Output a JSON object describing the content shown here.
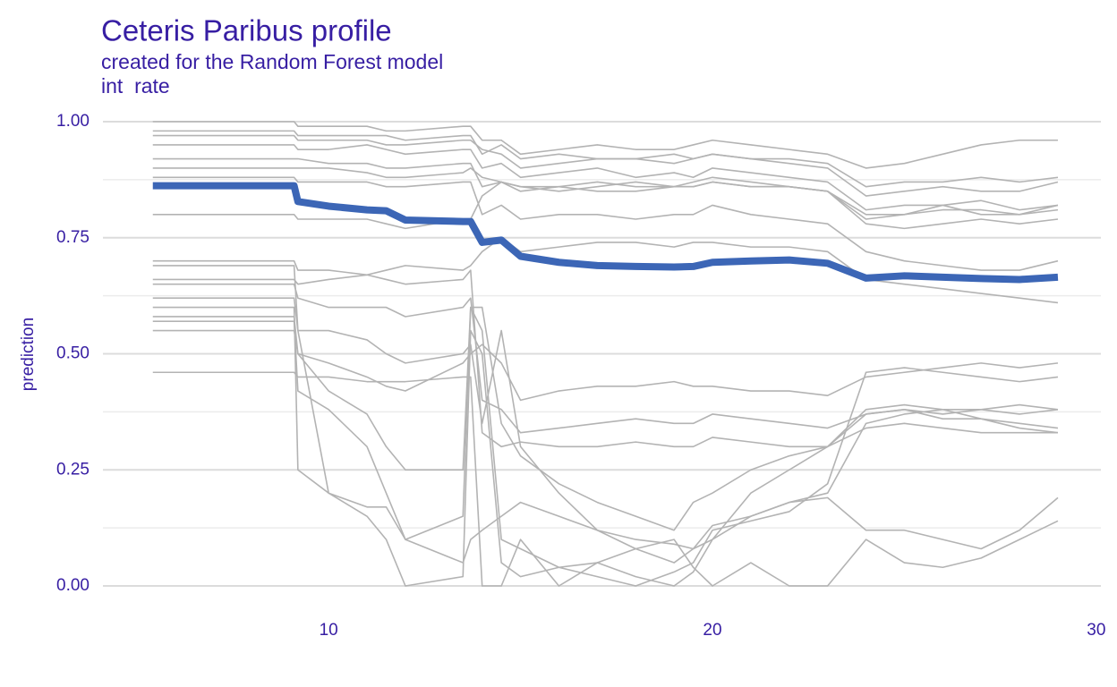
{
  "chart_data": {
    "type": "line",
    "title": "Ceteris Paribus profile",
    "subtitle": "created for the Random Forest model",
    "facet_label": "int  rate",
    "y_label": "prediction",
    "x": [
      5.42,
      9.1,
      9.2,
      10,
      11,
      11.5,
      12,
      13.5,
      13.7,
      14,
      14.5,
      15,
      16,
      17,
      18,
      19,
      19.5,
      20,
      21,
      22,
      23,
      24,
      25,
      26,
      27,
      28,
      29
    ],
    "xlim": [
      4.12,
      30.12
    ],
    "xticks": [
      10,
      20,
      30
    ],
    "ylim": [
      0,
      1
    ],
    "yticks": [
      {
        "value": 0,
        "label": "0.00"
      },
      {
        "value": 0.25,
        "label": "0.25"
      },
      {
        "value": 0.5,
        "label": "0.50"
      },
      {
        "value": 0.75,
        "label": "0.75"
      },
      {
        "value": 1,
        "label": "1.00"
      }
    ],
    "y_minor_ticks": [
      0.125,
      0.375,
      0.625,
      0.875
    ],
    "grid": true,
    "series": [
      {
        "color": "#b3b3b3",
        "values": [
          0.98,
          0.98,
          0.97,
          0.97,
          0.97,
          0.97,
          0.96,
          0.97,
          0.97,
          0.93,
          0.95,
          0.92,
          0.93,
          0.92,
          0.92,
          0.91,
          0.92,
          0.93,
          0.92,
          0.92,
          0.91,
          0.86,
          0.87,
          0.87,
          0.88,
          0.87,
          0.88
        ]
      },
      {
        "color": "#b3b3b3",
        "values": [
          0.95,
          0.95,
          0.94,
          0.94,
          0.95,
          0.94,
          0.93,
          0.94,
          0.94,
          0.9,
          0.91,
          0.88,
          0.89,
          0.9,
          0.88,
          0.89,
          0.88,
          0.9,
          0.89,
          0.88,
          0.87,
          0.81,
          0.82,
          0.82,
          0.83,
          0.81,
          0.82
        ]
      },
      {
        "color": "#b3b3b3",
        "values": [
          0.92,
          0.92,
          0.92,
          0.91,
          0.91,
          0.9,
          0.9,
          0.91,
          0.91,
          0.86,
          0.87,
          0.86,
          0.86,
          0.85,
          0.85,
          0.86,
          0.86,
          0.87,
          0.86,
          0.86,
          0.85,
          0.78,
          0.77,
          0.78,
          0.79,
          0.78,
          0.79
        ]
      },
      {
        "color": "#b3b3b3",
        "values": [
          1.0,
          1.0,
          0.99,
          0.99,
          0.99,
          0.98,
          0.98,
          0.99,
          0.99,
          0.96,
          0.96,
          0.93,
          0.94,
          0.95,
          0.94,
          0.94,
          0.95,
          0.96,
          0.95,
          0.94,
          0.93,
          0.9,
          0.91,
          0.93,
          0.95,
          0.96,
          0.96
        ]
      },
      {
        "color": "#b3b3b3",
        "values": [
          0.88,
          0.88,
          0.87,
          0.87,
          0.87,
          0.86,
          0.86,
          0.87,
          0.87,
          0.8,
          0.82,
          0.79,
          0.8,
          0.8,
          0.79,
          0.8,
          0.8,
          0.82,
          0.8,
          0.79,
          0.78,
          0.72,
          0.7,
          0.69,
          0.68,
          0.68,
          0.7
        ]
      },
      {
        "color": "#b3b3b3",
        "values": [
          0.8,
          0.8,
          0.79,
          0.79,
          0.79,
          0.78,
          0.77,
          0.79,
          0.79,
          0.84,
          0.87,
          0.85,
          0.86,
          0.87,
          0.86,
          0.86,
          0.87,
          0.88,
          0.87,
          0.86,
          0.85,
          0.8,
          0.8,
          0.82,
          0.8,
          0.8,
          0.81
        ]
      },
      {
        "color": "#b3b3b3",
        "values": [
          0.65,
          0.65,
          0.62,
          0.6,
          0.6,
          0.6,
          0.58,
          0.6,
          0.62,
          0.4,
          0.38,
          0.33,
          0.34,
          0.35,
          0.36,
          0.35,
          0.35,
          0.37,
          0.36,
          0.35,
          0.34,
          0.37,
          0.38,
          0.37,
          0.38,
          0.39,
          0.38
        ]
      },
      {
        "color": "#b3b3b3",
        "values": [
          0.6,
          0.6,
          0.25,
          0.2,
          0.15,
          0.1,
          0.0,
          0.02,
          0.55,
          0.5,
          0.05,
          0.02,
          0.04,
          0.05,
          0.02,
          0.0,
          0.03,
          0.1,
          0.15,
          0.18,
          0.2,
          0.35,
          0.37,
          0.38,
          0.36,
          0.35,
          0.34
        ]
      },
      {
        "color": "#b3b3b3",
        "values": [
          0.58,
          0.58,
          0.5,
          0.42,
          0.37,
          0.3,
          0.25,
          0.25,
          0.6,
          0.55,
          0.1,
          0.08,
          0.04,
          0.02,
          0.0,
          0.03,
          0.05,
          0.12,
          0.14,
          0.16,
          0.22,
          0.46,
          0.47,
          0.46,
          0.45,
          0.44,
          0.45
        ]
      },
      {
        "color": "#b3b3b3",
        "values": [
          0.7,
          0.7,
          0.68,
          0.68,
          0.67,
          0.66,
          0.65,
          0.66,
          0.68,
          0.33,
          0.3,
          0.31,
          0.3,
          0.3,
          0.31,
          0.3,
          0.3,
          0.32,
          0.31,
          0.3,
          0.3,
          0.34,
          0.35,
          0.34,
          0.33,
          0.33,
          0.33
        ]
      },
      {
        "color": "#b3b3b3",
        "values": [
          0.55,
          0.55,
          0.5,
          0.48,
          0.45,
          0.43,
          0.42,
          0.48,
          0.5,
          0.52,
          0.48,
          0.4,
          0.42,
          0.43,
          0.43,
          0.44,
          0.43,
          0.43,
          0.42,
          0.42,
          0.41,
          0.45,
          0.46,
          0.47,
          0.48,
          0.47,
          0.48
        ]
      },
      {
        "color": "#b3b3b3",
        "values": [
          0.62,
          0.62,
          0.55,
          0.55,
          0.53,
          0.5,
          0.48,
          0.5,
          0.52,
          0.35,
          0.55,
          0.3,
          0.2,
          0.12,
          0.08,
          0.05,
          0.08,
          0.1,
          0.2,
          0.25,
          0.3,
          0.38,
          0.39,
          0.38,
          0.38,
          0.37,
          0.38
        ]
      },
      {
        "color": "#b3b3b3",
        "values": [
          0.46,
          0.46,
          0.45,
          0.45,
          0.44,
          0.44,
          0.44,
          0.45,
          0.45,
          0.0,
          0.0,
          0.1,
          0.0,
          0.05,
          0.08,
          0.1,
          0.04,
          0.0,
          0.05,
          0.0,
          0.0,
          0.1,
          0.05,
          0.04,
          0.06,
          0.1,
          0.14
        ]
      },
      {
        "color": "#b3b3b3",
        "values": [
          0.69,
          0.69,
          0.55,
          0.2,
          0.17,
          0.17,
          0.1,
          0.05,
          0.1,
          0.12,
          0.15,
          0.18,
          0.15,
          0.12,
          0.1,
          0.09,
          0.08,
          0.13,
          0.15,
          0.18,
          0.19,
          0.12,
          0.12,
          0.1,
          0.08,
          0.12,
          0.19
        ]
      },
      {
        "color": "#b3b3b3",
        "values": [
          0.97,
          0.97,
          0.96,
          0.96,
          0.96,
          0.95,
          0.95,
          0.96,
          0.96,
          0.94,
          0.93,
          0.9,
          0.91,
          0.92,
          0.92,
          0.93,
          0.92,
          0.93,
          0.92,
          0.91,
          0.9,
          0.84,
          0.85,
          0.86,
          0.85,
          0.85,
          0.87
        ]
      },
      {
        "color": "#b3b3b3",
        "values": [
          0.66,
          0.66,
          0.65,
          0.66,
          0.67,
          0.68,
          0.69,
          0.68,
          0.69,
          0.72,
          0.75,
          0.72,
          0.73,
          0.74,
          0.74,
          0.73,
          0.74,
          0.74,
          0.73,
          0.73,
          0.72,
          0.66,
          0.65,
          0.64,
          0.63,
          0.62,
          0.61
        ]
      },
      {
        "color": "#b3b3b3",
        "values": [
          0.57,
          0.57,
          0.42,
          0.38,
          0.3,
          0.2,
          0.1,
          0.15,
          0.6,
          0.6,
          0.35,
          0.28,
          0.22,
          0.18,
          0.15,
          0.12,
          0.18,
          0.2,
          0.25,
          0.28,
          0.3,
          0.37,
          0.38,
          0.36,
          0.36,
          0.34,
          0.33
        ]
      },
      {
        "color": "#b3b3b3",
        "values": [
          0.9,
          0.9,
          0.9,
          0.9,
          0.89,
          0.88,
          0.88,
          0.89,
          0.9,
          0.88,
          0.87,
          0.86,
          0.85,
          0.86,
          0.87,
          0.86,
          0.86,
          0.87,
          0.86,
          0.86,
          0.85,
          0.79,
          0.8,
          0.81,
          0.81,
          0.8,
          0.82
        ]
      },
      {
        "color": "#3c66b6",
        "values": [
          0.862,
          0.862,
          0.828,
          0.818,
          0.81,
          0.808,
          0.788,
          0.785,
          0.785,
          0.74,
          0.745,
          0.71,
          0.697,
          0.69,
          0.688,
          0.687,
          0.688,
          0.697,
          0.7,
          0.702,
          0.695,
          0.663,
          0.668,
          0.665,
          0.662,
          0.66,
          0.665
        ]
      }
    ]
  }
}
